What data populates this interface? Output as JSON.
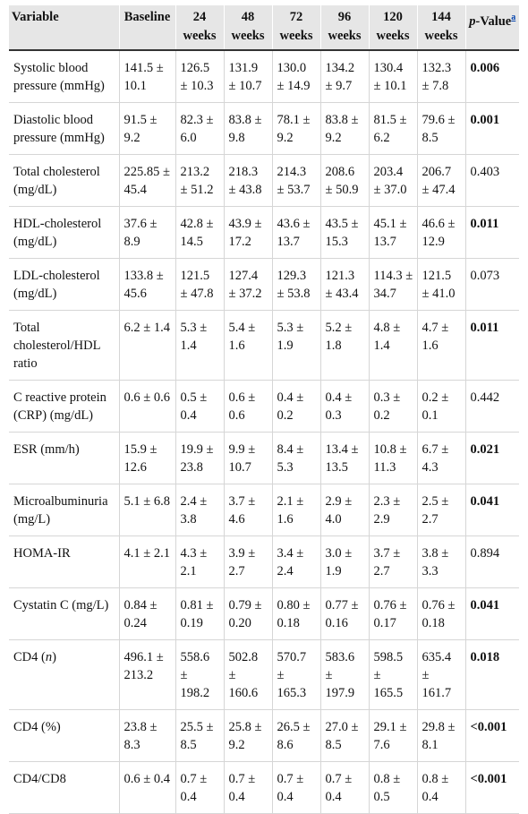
{
  "table": {
    "columns": [
      "Variable",
      "Baseline",
      "24 weeks",
      "48 weeks",
      "72 weeks",
      "96 weeks",
      "120 weeks",
      "144 weeks"
    ],
    "pvalue_header": {
      "italic": "p-",
      "text": "Value",
      "note": "a"
    },
    "rows": [
      {
        "variable": "Systolic blood pressure (mmHg)",
        "values": [
          "141.5 ± 10.1",
          "126.5 ± 10.3",
          "131.9 ± 10.7",
          "130.0 ± 14.9",
          "134.2 ± 9.7",
          "130.4 ± 10.1",
          "132.3 ± 7.8"
        ],
        "p": "0.006",
        "significant": true
      },
      {
        "variable": "Diastolic blood pressure (mmHg)",
        "values": [
          "91.5 ± 9.2",
          "82.3 ± 6.0",
          "83.8 ± 9.8",
          "78.1 ± 9.2",
          "83.8 ± 9.2",
          "81.5 ± 6.2",
          "79.6 ± 8.5"
        ],
        "p": "0.001",
        "significant": true
      },
      {
        "variable": "Total cholesterol (mg/dL)",
        "values": [
          "225.85 ± 45.4",
          "213.2 ± 51.2",
          "218.3 ± 43.8",
          "214.3 ± 53.7",
          "208.6 ± 50.9",
          "203.4 ± 37.0",
          "206.7 ± 47.4"
        ],
        "p": "0.403",
        "significant": false
      },
      {
        "variable": "HDL-cholesterol (mg/dL)",
        "values": [
          "37.6 ± 8.9",
          "42.8 ± 14.5",
          "43.9 ± 17.2",
          "43.6 ± 13.7",
          "43.5 ± 15.3",
          "45.1 ± 13.7",
          "46.6 ± 12.9"
        ],
        "p": "0.011",
        "significant": true
      },
      {
        "variable": "LDL-cholesterol (mg/dL)",
        "values": [
          "133.8 ± 45.6",
          "121.5 ± 47.8",
          "127.4 ± 37.2",
          "129.3 ± 53.8",
          "121.3 ± 43.4",
          "114.3 ± 34.7",
          "121.5 ± 41.0"
        ],
        "p": "0.073",
        "significant": false
      },
      {
        "variable": "Total cholesterol/HDL ratio",
        "values": [
          "6.2 ± 1.4",
          "5.3 ± 1.4",
          "5.4 ± 1.6",
          "5.3 ± 1.9",
          "5.2 ± 1.8",
          "4.8 ± 1.4",
          "4.7 ± 1.6"
        ],
        "p": "0.011",
        "significant": true
      },
      {
        "variable": "C reactive protein (CRP) (mg/dL)",
        "values": [
          "0.6 ± 0.6",
          "0.5 ± 0.4",
          "0.6 ± 0.6",
          "0.4 ± 0.2",
          "0.4 ± 0.3",
          "0.3 ± 0.2",
          "0.2 ± 0.1"
        ],
        "p": "0.442",
        "significant": false
      },
      {
        "variable": "ESR (mm/h)",
        "values": [
          "15.9 ± 12.6",
          "19.9 ± 23.8",
          "9.9 ± 10.7",
          "8.4 ± 5.3",
          "13.4 ± 13.5",
          "10.8 ± 11.3",
          "6.7 ± 4.3"
        ],
        "p": "0.021",
        "significant": true
      },
      {
        "variable": "Microalbuminuria (mg/L)",
        "values": [
          "5.1 ± 6.8",
          "2.4 ± 3.8",
          "3.7 ± 4.6",
          "2.1 ± 1.6",
          "2.9 ± 4.0",
          "2.3 ± 2.9",
          "2.5 ± 2.7"
        ],
        "p": "0.041",
        "significant": true
      },
      {
        "variable": "HOMA-IR",
        "values": [
          "4.1 ± 2.1",
          "4.3 ± 2.1",
          "3.9 ± 2.7",
          "3.4 ± 2.4",
          "3.0 ± 1.9",
          "3.7 ± 2.7",
          "3.8 ± 3.3"
        ],
        "p": "0.894",
        "significant": false
      },
      {
        "variable": "Cystatin C (mg/L)",
        "values": [
          "0.84 ± 0.24",
          "0.81 ± 0.19",
          "0.79 ± 0.20",
          "0.80 ± 0.18",
          "0.77 ± 0.16",
          "0.76 ± 0.17",
          "0.76 ± 0.18"
        ],
        "p": "0.041",
        "significant": true
      },
      {
        "variable": "CD4 (",
        "variable_italic": "n",
        "variable_end": ")",
        "values": [
          "496.1 ± 213.2",
          "558.6 ± 198.2",
          "502.8 ± 160.6",
          "570.7 ± 165.3",
          "583.6 ± 197.9",
          "598.5 ± 165.5",
          "635.4 ± 161.7"
        ],
        "p": "0.018",
        "significant": true
      },
      {
        "variable": "CD4 (%)",
        "values": [
          "23.8 ± 8.3",
          "25.5 ± 8.5",
          "25.8 ± 9.2",
          "26.5 ± 8.6",
          "27.0 ± 8.5",
          "29.1 ± 7.6",
          "29.8 ± 8.1"
        ],
        "p": "<0.001",
        "significant": true
      },
      {
        "variable": "CD4/CD8",
        "values": [
          "0.6 ± 0.4",
          "0.7 ± 0.4",
          "0.7 ± 0.4",
          "0.7 ± 0.4",
          "0.7 ± 0.4",
          "0.8 ± 0.5",
          "0.8 ± 0.4"
        ],
        "p": "<0.001",
        "significant": true
      }
    ]
  }
}
